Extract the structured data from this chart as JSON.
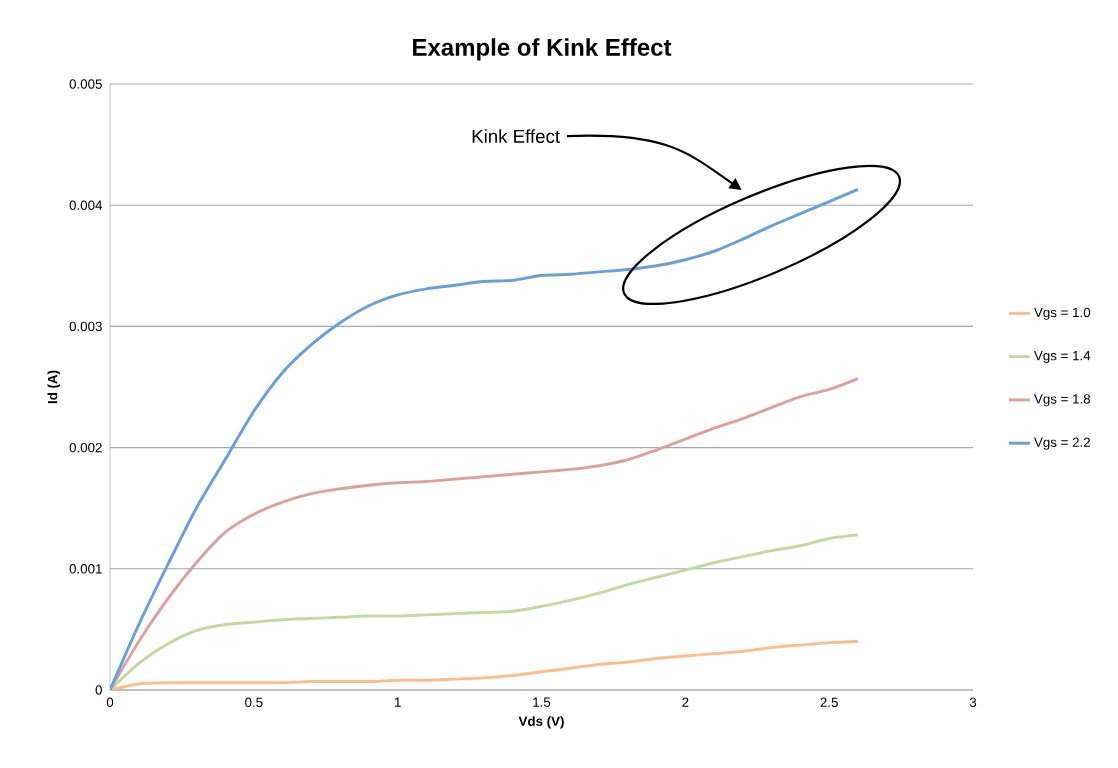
{
  "chart_data": {
    "type": "line",
    "title": "Example of Kink Effect",
    "xlabel": "Vds (V)",
    "ylabel": "Id (A)",
    "x": [
      0,
      0.1,
      0.2,
      0.3,
      0.4,
      0.5,
      0.6,
      0.7,
      0.8,
      0.9,
      1.0,
      1.1,
      1.2,
      1.3,
      1.4,
      1.5,
      1.6,
      1.7,
      1.8,
      1.9,
      2.0,
      2.1,
      2.2,
      2.3,
      2.4,
      2.5,
      2.6
    ],
    "series": [
      {
        "name": "Vgs = 1.0",
        "color": "#f9c08f",
        "values": [
          0,
          5e-05,
          6e-05,
          6e-05,
          6e-05,
          6e-05,
          6e-05,
          7e-05,
          7e-05,
          7e-05,
          8e-05,
          8e-05,
          9e-05,
          0.0001,
          0.00012,
          0.00015,
          0.00018,
          0.00021,
          0.00023,
          0.00026,
          0.00028,
          0.0003,
          0.00032,
          0.00035,
          0.00037,
          0.00039,
          0.0004
        ]
      },
      {
        "name": "Vgs = 1.4",
        "color": "#c5d8a0",
        "values": [
          0,
          0.00022,
          0.00038,
          0.00049,
          0.00054,
          0.00056,
          0.00058,
          0.00059,
          0.0006,
          0.00061,
          0.00061,
          0.00062,
          0.00063,
          0.00064,
          0.00065,
          0.00069,
          0.00074,
          0.0008,
          0.00087,
          0.00093,
          0.00099,
          0.00105,
          0.0011,
          0.00115,
          0.00119,
          0.00125,
          0.00128
        ]
      },
      {
        "name": "Vgs = 1.8",
        "color": "#dba39f",
        "values": [
          0,
          0.0004,
          0.00075,
          0.00105,
          0.0013,
          0.00145,
          0.00155,
          0.00162,
          0.00166,
          0.00169,
          0.00171,
          0.00172,
          0.00174,
          0.00176,
          0.00178,
          0.0018,
          0.00182,
          0.00185,
          0.0019,
          0.00198,
          0.00207,
          0.00216,
          0.00224,
          0.00233,
          0.00242,
          0.00248,
          0.00257
        ]
      },
      {
        "name": "Vgs = 2.2",
        "color": "#6a9fda",
        "values": [
          0,
          0.00054,
          0.00103,
          0.0015,
          0.0019,
          0.0023,
          0.00262,
          0.00285,
          0.00303,
          0.00317,
          0.00326,
          0.00331,
          0.00334,
          0.00337,
          0.00338,
          0.00342,
          0.00343,
          0.00345,
          0.00347,
          0.0035,
          0.00355,
          0.00362,
          0.00372,
          0.00383,
          0.00393,
          0.00403,
          0.00413
        ]
      }
    ],
    "xlim": [
      0,
      3
    ],
    "xticks": [
      0,
      0.5,
      1,
      1.5,
      2,
      2.5,
      3
    ],
    "ylim": [
      0,
      0.005
    ],
    "yticks": [
      0,
      0.001,
      0.002,
      0.003,
      0.004,
      0.005
    ],
    "grid": "y",
    "legend": "right",
    "marker": "none",
    "line_style": "solid",
    "annotations": [
      "Kink Effect"
    ]
  }
}
